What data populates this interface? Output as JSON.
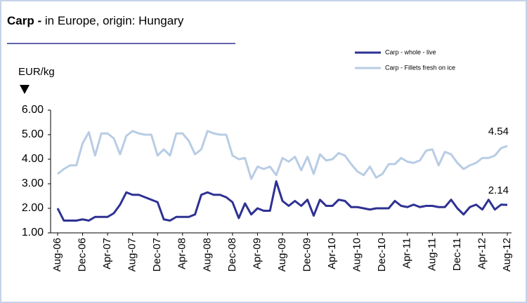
{
  "chart_data": {
    "type": "line",
    "title": "Carp -",
    "subtitle": "in Europe, origin: Hungary",
    "y_label": "EUR/kg",
    "categories": [
      "Aug-06",
      null,
      null,
      null,
      "Dec-06",
      null,
      null,
      null,
      "Apr-07",
      null,
      null,
      null,
      "Aug-07",
      null,
      null,
      null,
      "Dec-07",
      null,
      null,
      null,
      "Apr-08",
      null,
      null,
      null,
      "Aug-08",
      null,
      null,
      null,
      "Dec-08",
      null,
      null,
      null,
      "Apr-09",
      null,
      null,
      null,
      "Aug-09",
      null,
      null,
      null,
      "Dec-09",
      null,
      null,
      null,
      "Apr-10",
      null,
      null,
      null,
      "Aug-10",
      null,
      null,
      null,
      "Dec-10",
      null,
      null,
      null,
      "Apr-11",
      null,
      null,
      null,
      "Aug-11",
      null,
      null,
      null,
      "Dec-11",
      null,
      null,
      null,
      "Apr-12",
      null,
      null,
      null,
      "Aug-12"
    ],
    "series": [
      {
        "name": "Carp - whole - live",
        "color": "#2e3192",
        "values": [
          2.0,
          1.5,
          1.5,
          1.5,
          1.55,
          1.5,
          1.65,
          1.65,
          1.65,
          1.8,
          2.15,
          2.65,
          2.55,
          2.55,
          2.45,
          2.35,
          2.25,
          1.55,
          1.5,
          1.65,
          1.65,
          1.65,
          1.75,
          2.55,
          2.65,
          2.55,
          2.55,
          2.45,
          2.25,
          1.6,
          2.2,
          1.75,
          2.0,
          1.9,
          1.9,
          3.1,
          2.3,
          2.1,
          2.3,
          2.1,
          2.35,
          1.7,
          2.35,
          2.1,
          2.1,
          2.35,
          2.3,
          2.05,
          2.05,
          2.0,
          1.95,
          2.0,
          2.0,
          2.0,
          2.3,
          2.1,
          2.05,
          2.15,
          2.05,
          2.1,
          2.1,
          2.05,
          2.05,
          2.35,
          2.0,
          1.75,
          2.05,
          2.15,
          1.95,
          2.35,
          1.95,
          2.15,
          2.14
        ]
      },
      {
        "name": "Carp - Fillets fresh on ice",
        "color": "#b8cce4",
        "values": [
          3.4,
          3.6,
          3.75,
          3.75,
          4.65,
          5.1,
          4.15,
          5.05,
          5.05,
          4.85,
          4.2,
          4.95,
          5.15,
          5.05,
          5.0,
          5.0,
          4.15,
          4.4,
          4.15,
          5.05,
          5.05,
          4.75,
          4.2,
          4.4,
          5.15,
          5.05,
          5.0,
          5.0,
          4.15,
          4.0,
          4.05,
          3.2,
          3.7,
          3.6,
          3.7,
          3.35,
          4.05,
          3.9,
          4.1,
          3.55,
          4.1,
          3.4,
          4.2,
          3.95,
          4.0,
          4.25,
          4.15,
          3.8,
          3.5,
          3.35,
          3.7,
          3.25,
          3.4,
          3.8,
          3.8,
          4.05,
          3.9,
          3.85,
          3.95,
          4.35,
          4.4,
          3.75,
          4.3,
          4.2,
          3.85,
          3.6,
          3.75,
          3.85,
          4.05,
          4.05,
          4.15,
          4.45,
          4.54
        ]
      }
    ],
    "ylim": [
      1,
      6
    ],
    "yticks": [
      {
        "value": 1,
        "label": "1.00"
      },
      {
        "value": 2,
        "label": "2.00"
      },
      {
        "value": 3,
        "label": "3.00"
      },
      {
        "value": 4,
        "label": "4.00"
      },
      {
        "value": 5,
        "label": "5.00"
      },
      {
        "value": 6,
        "label": "6.00"
      }
    ],
    "grid": false,
    "legend": "top-right"
  }
}
